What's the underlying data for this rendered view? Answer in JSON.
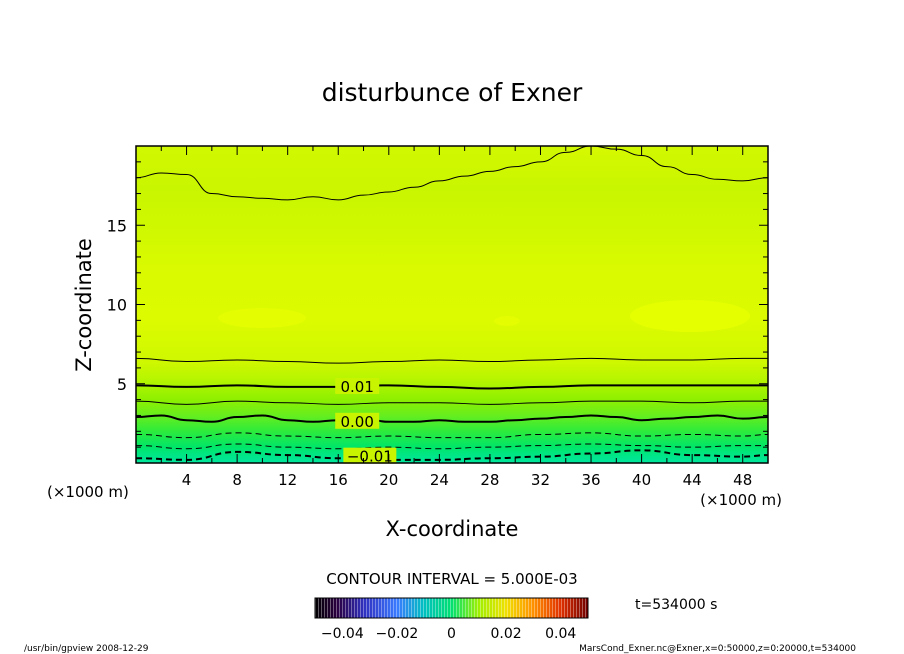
{
  "chart_data": {
    "type": "heatmap",
    "title": "disturbunce of Exner",
    "xlabel": "X-coordinate",
    "ylabel": "Z-coordinate",
    "x_unit": "(×1000 m)",
    "y_unit": "(×1000 m)",
    "xlim": [
      0,
      50
    ],
    "ylim": [
      0,
      20
    ],
    "x_ticks": [
      "4",
      "8",
      "12",
      "16",
      "20",
      "24",
      "28",
      "32",
      "36",
      "40",
      "44",
      "48"
    ],
    "x_tick_values": [
      4,
      8,
      12,
      16,
      20,
      24,
      28,
      32,
      36,
      40,
      44,
      48
    ],
    "y_ticks": [
      "5",
      "10",
      "15"
    ],
    "y_tick_values": [
      5,
      10,
      15
    ],
    "contour_labels": [
      {
        "text": "0.01",
        "x": 17.5,
        "z": 4.8
      },
      {
        "text": "0.00",
        "x": 17.5,
        "z": 2.6
      },
      {
        "text": "−0.01",
        "x": 18.5,
        "z": 0.4
      }
    ],
    "contour_lines": [
      {
        "level": 0.03,
        "style": "thin",
        "x": [
          0,
          2,
          4,
          6,
          8,
          10,
          12,
          14,
          16,
          18,
          20,
          22,
          24,
          26,
          28,
          30,
          32,
          34,
          36,
          38,
          40,
          42,
          44,
          46,
          48,
          50
        ],
        "z": [
          18.0,
          18.3,
          18.2,
          17.0,
          16.8,
          16.7,
          16.6,
          16.8,
          16.6,
          16.9,
          17.1,
          17.4,
          17.8,
          18.1,
          18.4,
          18.7,
          19.0,
          19.6,
          20.0,
          19.8,
          19.4,
          18.7,
          18.2,
          17.9,
          17.8,
          18.0
        ]
      },
      {
        "level": 0.015,
        "style": "thin",
        "x": [
          0,
          4,
          8,
          12,
          16,
          20,
          24,
          28,
          32,
          36,
          40,
          44,
          48,
          50
        ],
        "z": [
          6.6,
          6.4,
          6.5,
          6.4,
          6.3,
          6.4,
          6.5,
          6.4,
          6.5,
          6.6,
          6.5,
          6.5,
          6.6,
          6.6
        ]
      },
      {
        "level": 0.01,
        "style": "bold",
        "x": [
          0,
          4,
          8,
          12,
          16,
          20,
          24,
          28,
          32,
          36,
          40,
          44,
          48,
          50
        ],
        "z": [
          4.9,
          4.8,
          4.9,
          4.8,
          4.8,
          4.9,
          4.8,
          4.7,
          4.8,
          4.9,
          4.9,
          4.9,
          4.9,
          4.9
        ]
      },
      {
        "level": 0.005,
        "style": "thin",
        "x": [
          0,
          4,
          8,
          12,
          16,
          20,
          24,
          28,
          32,
          36,
          40,
          44,
          48,
          50
        ],
        "z": [
          3.9,
          3.7,
          3.9,
          3.8,
          3.7,
          3.8,
          3.8,
          3.7,
          3.8,
          3.9,
          3.9,
          3.8,
          3.9,
          3.9
        ]
      },
      {
        "level": 0.0,
        "style": "bold",
        "x": [
          0,
          2,
          4,
          6,
          8,
          10,
          12,
          14,
          16,
          18,
          20,
          22,
          24,
          26,
          28,
          30,
          32,
          34,
          36,
          38,
          40,
          42,
          44,
          46,
          48,
          50
        ],
        "z": [
          2.9,
          3.0,
          2.7,
          2.6,
          2.9,
          3.0,
          2.7,
          2.6,
          2.7,
          2.8,
          2.6,
          2.6,
          2.7,
          2.6,
          2.6,
          2.7,
          2.8,
          2.9,
          3.0,
          2.9,
          2.7,
          2.8,
          2.9,
          3.0,
          2.8,
          2.9
        ]
      },
      {
        "level": -0.005,
        "style": "dashed",
        "x": [
          0,
          4,
          8,
          12,
          16,
          20,
          24,
          28,
          32,
          36,
          40,
          44,
          48,
          50
        ],
        "z": [
          1.8,
          1.6,
          1.9,
          1.7,
          1.6,
          1.7,
          1.6,
          1.6,
          1.8,
          1.9,
          1.7,
          1.8,
          1.7,
          1.8
        ]
      },
      {
        "level": -0.01,
        "style": "dashed-bold",
        "x": [
          0,
          4,
          8,
          12,
          16,
          20,
          24,
          28,
          32,
          36,
          40,
          44,
          48,
          50
        ],
        "z": [
          0.3,
          0.2,
          0.7,
          0.5,
          0.3,
          0.2,
          0.2,
          0.3,
          0.4,
          0.6,
          0.8,
          0.5,
          0.4,
          0.5
        ]
      },
      {
        "level": -0.008,
        "style": "dashed",
        "x": [
          0,
          4,
          8,
          12,
          16,
          20,
          24,
          28,
          32,
          36,
          40,
          44,
          48,
          50
        ],
        "z": [
          1.1,
          0.9,
          1.2,
          1.0,
          0.9,
          1.0,
          0.9,
          1.0,
          1.1,
          1.2,
          1.1,
          1.0,
          1.1,
          1.1
        ]
      }
    ],
    "contour_interval_label": "CONTOUR INTERVAL = 5.000E-03",
    "time_label": "t=534000 s",
    "colorbar": {
      "tick_labels": [
        "−0.04",
        "−0.02",
        "0",
        "0.02",
        "0.04"
      ],
      "tick_values": [
        -0.04,
        -0.02,
        0,
        0.02,
        0.04
      ],
      "range": [
        -0.05,
        0.05
      ]
    },
    "footer_left": "/usr/bin/gpview   2008-12-29",
    "footer_right": "MarsCond_Exner.nc@Exner,x=0:50000,z=0:20000,t=534000",
    "colors": {
      "high": "#e6ff00",
      "upper": "#d9fa00",
      "mid": "#9bf200",
      "low": "#00e660",
      "bottom": "#00e6a0"
    }
  }
}
